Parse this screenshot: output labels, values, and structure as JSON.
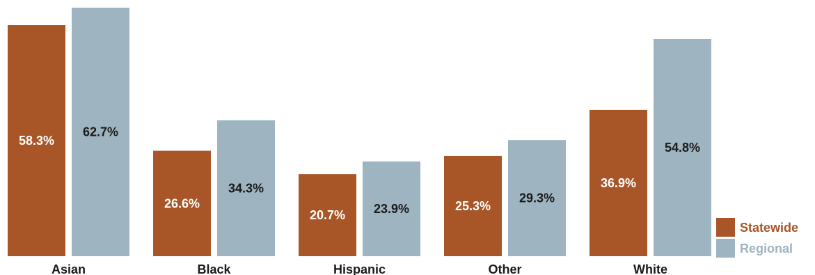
{
  "chart_data": {
    "type": "bar",
    "categories": [
      "Asian",
      "Black",
      "Hispanic",
      "Other",
      "White"
    ],
    "series": [
      {
        "name": "Statewide",
        "color": "#a85628",
        "label_color": "#ffffff",
        "values": [
          58.3,
          26.6,
          20.7,
          25.3,
          36.9
        ],
        "labels": [
          "58.3%",
          "26.6%",
          "20.7%",
          "25.3%",
          "36.9%"
        ]
      },
      {
        "name": "Regional",
        "color": "#9eb4c0",
        "label_color": "#1a1a1a",
        "values": [
          62.7,
          34.3,
          23.9,
          29.3,
          54.8
        ],
        "labels": [
          "62.7%",
          "34.3%",
          "23.9%",
          "29.3%",
          "54.8%"
        ]
      }
    ],
    "ylim": [
      0,
      62.7
    ],
    "grid": false,
    "legend_position": "bottom-right"
  }
}
